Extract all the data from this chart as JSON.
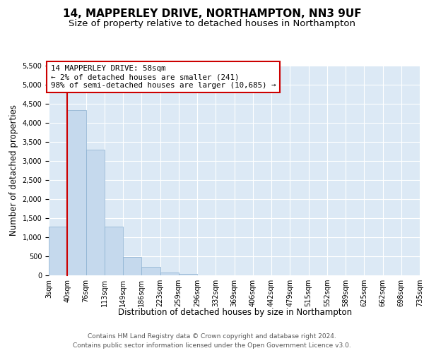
{
  "title": "14, MAPPERLEY DRIVE, NORTHAMPTON, NN3 9UF",
  "subtitle": "Size of property relative to detached houses in Northampton",
  "xlabel": "Distribution of detached houses by size in Northampton",
  "ylabel": "Number of detached properties",
  "bin_labels": [
    "3sqm",
    "40sqm",
    "76sqm",
    "113sqm",
    "149sqm",
    "186sqm",
    "223sqm",
    "259sqm",
    "296sqm",
    "332sqm",
    "369sqm",
    "406sqm",
    "442sqm",
    "479sqm",
    "515sqm",
    "552sqm",
    "589sqm",
    "625sqm",
    "662sqm",
    "698sqm",
    "735sqm"
  ],
  "bar_values": [
    1270,
    4330,
    3290,
    1280,
    480,
    230,
    80,
    40,
    0,
    0,
    0,
    0,
    0,
    0,
    0,
    0,
    0,
    0,
    0,
    0
  ],
  "bar_color": "#c5d9ed",
  "bar_edge_color": "#8ab0d0",
  "marker_color": "#cc0000",
  "annotation_title": "14 MAPPERLEY DRIVE: 58sqm",
  "annotation_line1": "← 2% of detached houses are smaller (241)",
  "annotation_line2": "98% of semi-detached houses are larger (10,685) →",
  "ann_box_edgecolor": "#cc0000",
  "ylim_max": 5500,
  "yticks": [
    0,
    500,
    1000,
    1500,
    2000,
    2500,
    3000,
    3500,
    4000,
    4500,
    5000,
    5500
  ],
  "plot_bg": "#dce9f5",
  "grid_color": "#ffffff",
  "title_fontsize": 11,
  "subtitle_fontsize": 9.5,
  "ylabel_fontsize": 8.5,
  "xlabel_fontsize": 8.5,
  "tick_fontsize": 7,
  "footer1": "Contains HM Land Registry data © Crown copyright and database right 2024.",
  "footer2": "Contains public sector information licensed under the Open Government Licence v3.0.",
  "footer_fontsize": 6.5
}
